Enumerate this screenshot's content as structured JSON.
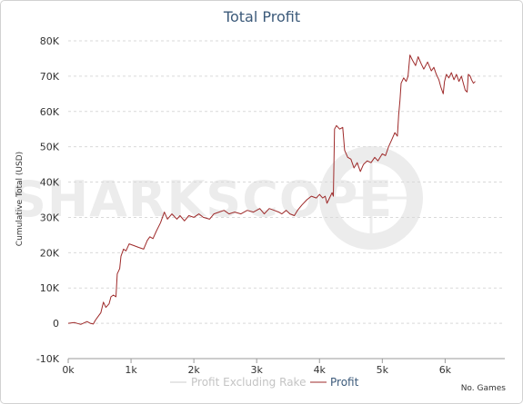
{
  "chart_data": {
    "type": "line",
    "title": "Total Profit",
    "xlabel": "No. Games",
    "ylabel": "Cumulative Total (USD)",
    "xlim": [
      0,
      6950
    ],
    "ylim": [
      -10000,
      80000
    ],
    "x_ticks": [
      {
        "value": 0,
        "label": "0k"
      },
      {
        "value": 1000,
        "label": "1k"
      },
      {
        "value": 2000,
        "label": "2k"
      },
      {
        "value": 3000,
        "label": "3k"
      },
      {
        "value": 4000,
        "label": "4k"
      },
      {
        "value": 5000,
        "label": "5k"
      },
      {
        "value": 6000,
        "label": "6k"
      }
    ],
    "y_ticks": [
      {
        "value": -10000,
        "label": "-10K"
      },
      {
        "value": 0,
        "label": "0"
      },
      {
        "value": 10000,
        "label": "10K"
      },
      {
        "value": 20000,
        "label": "20K"
      },
      {
        "value": 30000,
        "label": "30K"
      },
      {
        "value": 40000,
        "label": "40K"
      },
      {
        "value": 50000,
        "label": "50K"
      },
      {
        "value": 60000,
        "label": "60K"
      },
      {
        "value": 70000,
        "label": "70K"
      },
      {
        "value": 80000,
        "label": "80K"
      }
    ],
    "grid": true,
    "legend_position": "bottom",
    "watermark": "SHARKSCOPE",
    "series": [
      {
        "name": "Profit Excluding Rake",
        "color": "#cccccc",
        "points": []
      },
      {
        "name": "Profit",
        "color": "#9e2a2a",
        "points": [
          [
            0,
            0
          ],
          [
            100,
            200
          ],
          [
            200,
            -300
          ],
          [
            300,
            500
          ],
          [
            350,
            0
          ],
          [
            400,
            -200
          ],
          [
            430,
            800
          ],
          [
            470,
            1800
          ],
          [
            520,
            3000
          ],
          [
            560,
            6000
          ],
          [
            600,
            4500
          ],
          [
            650,
            5500
          ],
          [
            680,
            7500
          ],
          [
            720,
            8000
          ],
          [
            760,
            7500
          ],
          [
            780,
            14000
          ],
          [
            820,
            15500
          ],
          [
            840,
            19000
          ],
          [
            880,
            21000
          ],
          [
            920,
            20500
          ],
          [
            970,
            22500
          ],
          [
            1050,
            22000
          ],
          [
            1120,
            21500
          ],
          [
            1200,
            21000
          ],
          [
            1260,
            23500
          ],
          [
            1300,
            24500
          ],
          [
            1350,
            24000
          ],
          [
            1400,
            26000
          ],
          [
            1470,
            28500
          ],
          [
            1530,
            31500
          ],
          [
            1580,
            29500
          ],
          [
            1650,
            31000
          ],
          [
            1730,
            29500
          ],
          [
            1780,
            30500
          ],
          [
            1850,
            29000
          ],
          [
            1920,
            30500
          ],
          [
            2000,
            30000
          ],
          [
            2080,
            31000
          ],
          [
            2150,
            30000
          ],
          [
            2250,
            29500
          ],
          [
            2320,
            31000
          ],
          [
            2400,
            31500
          ],
          [
            2480,
            32000
          ],
          [
            2560,
            31000
          ],
          [
            2650,
            31500
          ],
          [
            2750,
            31000
          ],
          [
            2850,
            32000
          ],
          [
            2950,
            31500
          ],
          [
            3050,
            32500
          ],
          [
            3120,
            31000
          ],
          [
            3200,
            32500
          ],
          [
            3280,
            32000
          ],
          [
            3350,
            31500
          ],
          [
            3400,
            31000
          ],
          [
            3470,
            32000
          ],
          [
            3530,
            31000
          ],
          [
            3600,
            30500
          ],
          [
            3650,
            32000
          ],
          [
            3720,
            33500
          ],
          [
            3800,
            35000
          ],
          [
            3870,
            36000
          ],
          [
            3950,
            35500
          ],
          [
            4000,
            36500
          ],
          [
            4050,
            35500
          ],
          [
            4090,
            36000
          ],
          [
            4120,
            34000
          ],
          [
            4160,
            35500
          ],
          [
            4200,
            37000
          ],
          [
            4220,
            36000
          ],
          [
            4240,
            55000
          ],
          [
            4270,
            56000
          ],
          [
            4320,
            55000
          ],
          [
            4370,
            55500
          ],
          [
            4400,
            49000
          ],
          [
            4450,
            47000
          ],
          [
            4500,
            46500
          ],
          [
            4550,
            44000
          ],
          [
            4600,
            45500
          ],
          [
            4650,
            43000
          ],
          [
            4700,
            45000
          ],
          [
            4760,
            46000
          ],
          [
            4820,
            45500
          ],
          [
            4880,
            47000
          ],
          [
            4930,
            46000
          ],
          [
            5000,
            48000
          ],
          [
            5050,
            47500
          ],
          [
            5100,
            50000
          ],
          [
            5150,
            52000
          ],
          [
            5200,
            54000
          ],
          [
            5240,
            53000
          ],
          [
            5260,
            59000
          ],
          [
            5280,
            63000
          ],
          [
            5300,
            68000
          ],
          [
            5340,
            69500
          ],
          [
            5380,
            68500
          ],
          [
            5410,
            70000
          ],
          [
            5440,
            76000
          ],
          [
            5480,
            74500
          ],
          [
            5530,
            73000
          ],
          [
            5570,
            75500
          ],
          [
            5620,
            73500
          ],
          [
            5660,
            72000
          ],
          [
            5720,
            74000
          ],
          [
            5780,
            71500
          ],
          [
            5820,
            72500
          ],
          [
            5860,
            70500
          ],
          [
            5900,
            69000
          ],
          [
            5930,
            67000
          ],
          [
            5950,
            66000
          ],
          [
            5970,
            65000
          ],
          [
            5990,
            68500
          ],
          [
            6020,
            70500
          ],
          [
            6060,
            69500
          ],
          [
            6100,
            71000
          ],
          [
            6140,
            69000
          ],
          [
            6180,
            70500
          ],
          [
            6220,
            68500
          ],
          [
            6260,
            70000
          ],
          [
            6290,
            68000
          ],
          [
            6320,
            66000
          ],
          [
            6350,
            65500
          ],
          [
            6370,
            70500
          ],
          [
            6400,
            70000
          ],
          [
            6420,
            69000
          ],
          [
            6450,
            68000
          ],
          [
            6480,
            68500
          ]
        ]
      }
    ]
  }
}
